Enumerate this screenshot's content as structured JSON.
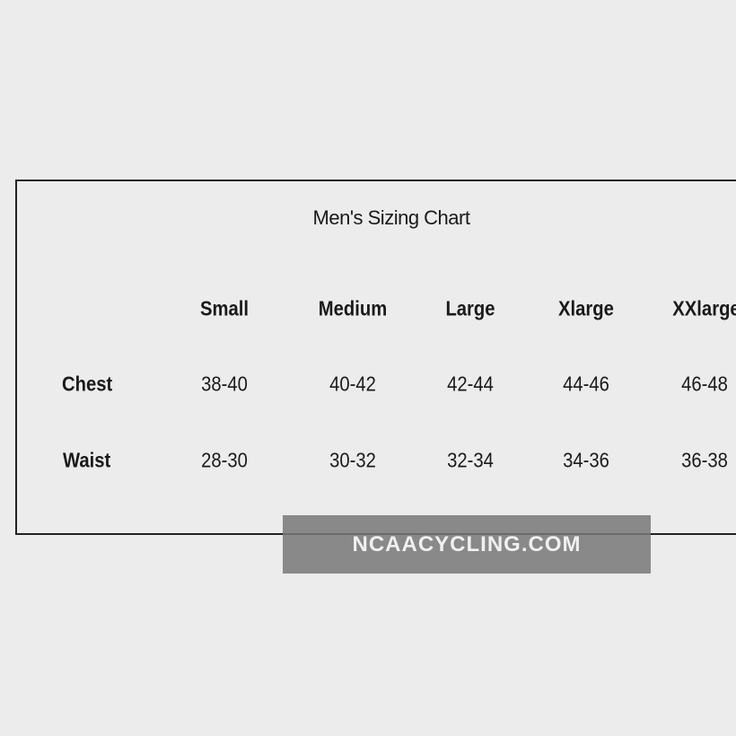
{
  "title": "Men's Sizing Chart",
  "columns": [
    "Small",
    "Medium",
    "Large",
    "Xlarge",
    "XXlarge"
  ],
  "rows": [
    {
      "label": "Chest",
      "values": [
        "38-40",
        "40-42",
        "42-44",
        "44-46",
        "46-48"
      ]
    },
    {
      "label": "Waist",
      "values": [
        "28-30",
        "30-32",
        "32-34",
        "34-36",
        "36-38"
      ]
    }
  ],
  "watermark": "NCAACYCLING.COM"
}
